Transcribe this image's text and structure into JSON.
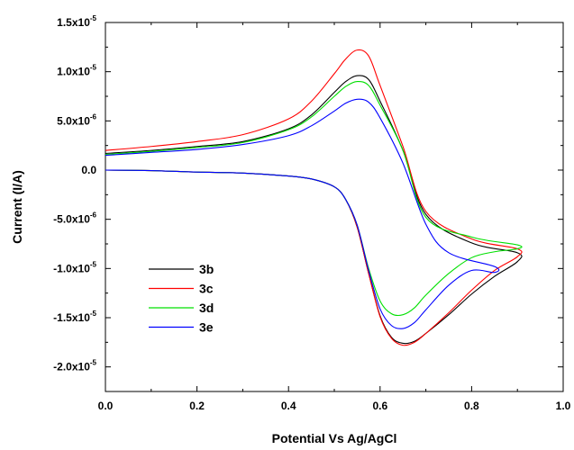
{
  "chart_data": {
    "type": "line",
    "xlabel": "Potential Vs Ag/AgCl",
    "ylabel": "Current (I/A)",
    "xlim": [
      0.0,
      1.0
    ],
    "ylim": [
      -2.25e-05,
      1.5e-05
    ],
    "x_ticks": [
      {
        "value": 0.0,
        "label": "0.0"
      },
      {
        "value": 0.2,
        "label": "0.2"
      },
      {
        "value": 0.4,
        "label": "0.4"
      },
      {
        "value": 0.6,
        "label": "0.6"
      },
      {
        "value": 0.8,
        "label": "0.8"
      },
      {
        "value": 1.0,
        "label": "1.0"
      }
    ],
    "y_ticks": [
      {
        "value": 1.5e-05,
        "mant": "1.5x10",
        "exp": "-5"
      },
      {
        "value": 1e-05,
        "mant": "1.0x10",
        "exp": "-5"
      },
      {
        "value": 5e-06,
        "mant": "5.0x10",
        "exp": "-6"
      },
      {
        "value": 0,
        "mant": "0.0",
        "exp": ""
      },
      {
        "value": -5e-06,
        "mant": "-5.0x10",
        "exp": "-6"
      },
      {
        "value": -1e-05,
        "mant": "-1.0x10",
        "exp": "-5"
      },
      {
        "value": -1.5e-05,
        "mant": "-1.5x10",
        "exp": "-5"
      },
      {
        "value": -2e-05,
        "mant": "-2.0x10",
        "exp": "-5"
      }
    ],
    "grid": false,
    "legend_position": "lower-left",
    "series": [
      {
        "name": "3b",
        "color": "#000000",
        "x": [
          0.0,
          0.1,
          0.2,
          0.3,
          0.4,
          0.45,
          0.5,
          0.525,
          0.55,
          0.575,
          0.6,
          0.65,
          0.7,
          0.8,
          0.9,
          0.9,
          0.85,
          0.8,
          0.75,
          0.7,
          0.675,
          0.65,
          0.625,
          0.6,
          0.575,
          0.55,
          0.525,
          0.5,
          0.45,
          0.4,
          0.3,
          0.2,
          0.1,
          0.0
        ],
        "y": [
          1.7e-06,
          2e-06,
          2.4e-06,
          2.9e-06,
          4.2e-06,
          5.6e-06,
          7.9e-06,
          9e-06,
          9.6e-06,
          9.2e-06,
          7e-06,
          2e-06,
          -4.5e-06,
          -7.4e-06,
          -8.4e-06,
          -9.3e-06,
          -1.08e-05,
          -1.26e-05,
          -1.47e-05,
          -1.66e-05,
          -1.74e-05,
          -1.76e-05,
          -1.7e-05,
          -1.48e-05,
          -1.05e-05,
          -5.8e-06,
          -3e-06,
          -1.7e-06,
          -9e-07,
          -6e-07,
          -3e-07,
          -2e-07,
          -5e-08,
          0.0
        ]
      },
      {
        "name": "3c",
        "color": "#ff0000",
        "x": [
          0.0,
          0.1,
          0.2,
          0.3,
          0.4,
          0.45,
          0.5,
          0.525,
          0.55,
          0.575,
          0.6,
          0.65,
          0.7,
          0.8,
          0.9,
          0.9,
          0.85,
          0.8,
          0.75,
          0.7,
          0.675,
          0.65,
          0.625,
          0.6,
          0.575,
          0.55,
          0.525,
          0.5,
          0.45,
          0.4,
          0.3,
          0.2,
          0.1,
          0.0
        ],
        "y": [
          2e-06,
          2.4e-06,
          2.9e-06,
          3.6e-06,
          5.2e-06,
          7e-06,
          9.8e-06,
          1.13e-05,
          1.22e-05,
          1.16e-05,
          8.6e-06,
          2.4e-06,
          -4.2e-06,
          -7e-06,
          -8e-06,
          -8.8e-06,
          -1.02e-05,
          -1.22e-05,
          -1.45e-05,
          -1.66e-05,
          -1.75e-05,
          -1.78e-05,
          -1.71e-05,
          -1.49e-05,
          -1.05e-05,
          -5.8e-06,
          -3e-06,
          -1.7e-06,
          -9e-07,
          -6e-07,
          -3e-07,
          -2e-07,
          -5e-08,
          0.0
        ]
      },
      {
        "name": "3d",
        "color": "#00e000",
        "x": [
          0.0,
          0.1,
          0.2,
          0.3,
          0.4,
          0.45,
          0.5,
          0.525,
          0.55,
          0.575,
          0.6,
          0.65,
          0.7,
          0.8,
          0.9,
          0.9,
          0.85,
          0.8,
          0.75,
          0.7,
          0.675,
          0.65,
          0.625,
          0.6,
          0.575,
          0.55,
          0.525,
          0.5,
          0.45,
          0.4,
          0.3,
          0.2,
          0.1,
          0.0
        ],
        "y": [
          1.6e-06,
          1.9e-06,
          2.3e-06,
          2.8e-06,
          4.1e-06,
          5.4e-06,
          7.5e-06,
          8.5e-06,
          9e-06,
          8.6e-06,
          6.6e-06,
          2e-06,
          -4.8e-06,
          -6.8e-06,
          -7.6e-06,
          -8e-06,
          -8.3e-06,
          -8.9e-06,
          -1.05e-05,
          -1.27e-05,
          -1.4e-05,
          -1.47e-05,
          -1.46e-05,
          -1.33e-05,
          -1e-05,
          -5.6e-06,
          -3e-06,
          -1.7e-06,
          -9e-07,
          -6e-07,
          -3e-07,
          -2e-07,
          -5e-08,
          0.0
        ]
      },
      {
        "name": "3e",
        "color": "#0000ff",
        "x": [
          0.0,
          0.1,
          0.2,
          0.3,
          0.4,
          0.45,
          0.5,
          0.525,
          0.55,
          0.575,
          0.6,
          0.65,
          0.7,
          0.75,
          0.85,
          0.85,
          0.8,
          0.75,
          0.7,
          0.675,
          0.65,
          0.625,
          0.6,
          0.575,
          0.55,
          0.525,
          0.5,
          0.45,
          0.4,
          0.3,
          0.2,
          0.1,
          0.0
        ],
        "y": [
          1.5e-06,
          1.8e-06,
          2.1e-06,
          2.6e-06,
          3.5e-06,
          4.5e-06,
          6e-06,
          6.8e-06,
          7.2e-06,
          6.9e-06,
          5.3e-06,
          7e-07,
          -5.5e-06,
          -8.4e-06,
          -9.8e-06,
          -1.04e-05,
          -1.02e-05,
          -1.17e-05,
          -1.42e-05,
          -1.55e-05,
          -1.61e-05,
          -1.58e-05,
          -1.41e-05,
          -1.02e-05,
          -5.6e-06,
          -3e-06,
          -1.7e-06,
          -9e-07,
          -6e-07,
          -3e-07,
          -2e-07,
          -5e-08,
          0.0
        ]
      }
    ]
  }
}
